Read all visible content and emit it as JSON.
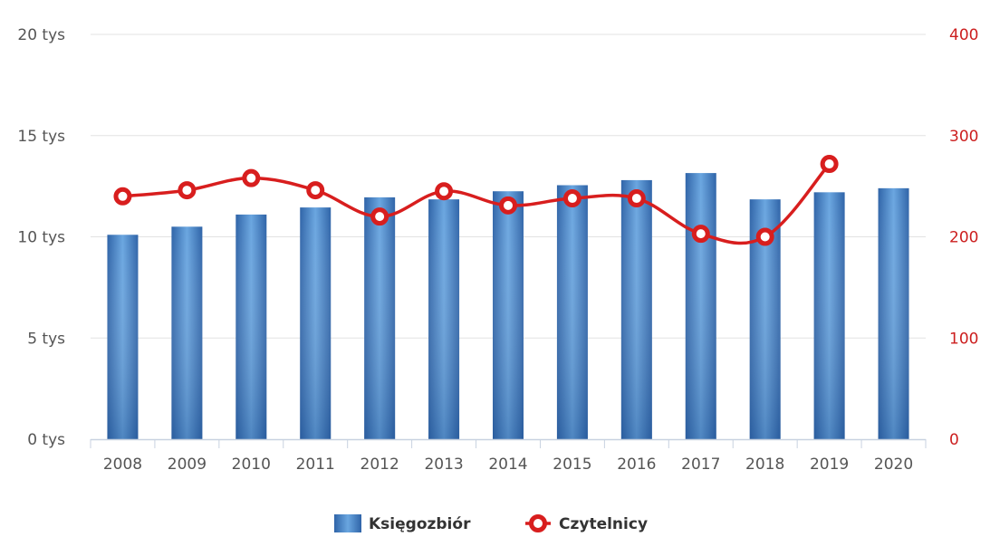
{
  "chart_data": {
    "type": "bar",
    "categories": [
      "2008",
      "2009",
      "2010",
      "2011",
      "2012",
      "2013",
      "2014",
      "2015",
      "2016",
      "2017",
      "2018",
      "2019",
      "2020"
    ],
    "series": [
      {
        "name": "Księgozbiór",
        "type": "bar",
        "axis": "left",
        "color": "#3d7cc0",
        "values": [
          10100,
          10500,
          11100,
          11450,
          11950,
          11850,
          12250,
          12550,
          12800,
          13150,
          11850,
          12200,
          12400
        ]
      },
      {
        "name": "Czytelnicy",
        "type": "line",
        "axis": "right",
        "color": "#d81e1e",
        "values": [
          240,
          246,
          258,
          246,
          220,
          245,
          231,
          238,
          238,
          203,
          200,
          272,
          null
        ]
      }
    ],
    "y_left": {
      "ylim": [
        0,
        20000
      ],
      "ticks": [
        0,
        5000,
        10000,
        15000,
        20000
      ],
      "tick_labels": [
        "0 tys",
        "5 tys",
        "10 tys",
        "15 tys",
        "20 tys"
      ]
    },
    "y_right": {
      "ylim": [
        0,
        400
      ],
      "ticks": [
        0,
        100,
        200,
        300,
        400
      ],
      "tick_labels": [
        "0",
        "100",
        "200",
        "300",
        "400"
      ],
      "color": "#cc1f1f"
    },
    "grid": true,
    "legend": "bottom-center"
  }
}
